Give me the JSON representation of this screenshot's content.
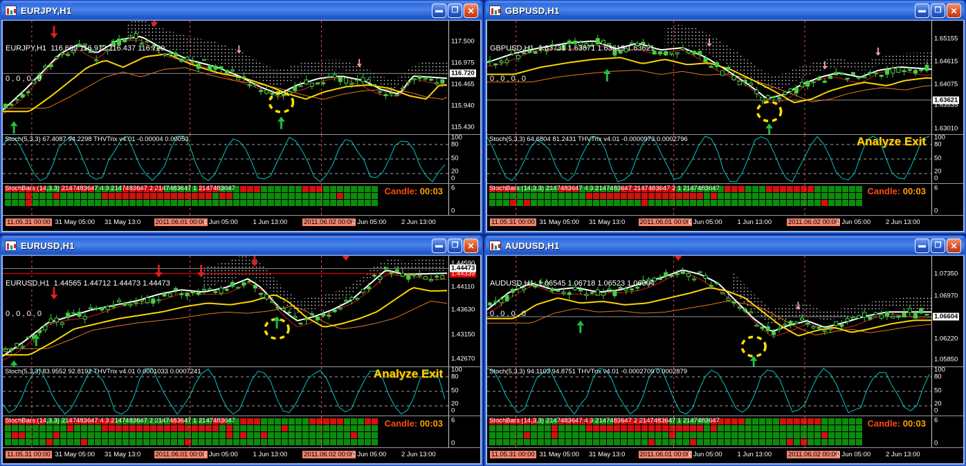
{
  "app": {
    "analyze_exit_label": "Analyze Exit",
    "candle_label": "Candle:",
    "candle_time": "00:03",
    "window_buttons": {
      "minimize": "▬",
      "maximize": "❐",
      "close": "✕"
    },
    "stoch_scale": [
      {
        "label": "100",
        "pos": 0.06
      },
      {
        "label": "80",
        "pos": 0.2
      },
      {
        "label": "50",
        "pos": 0.48
      },
      {
        "label": "20",
        "pos": 0.76
      },
      {
        "label": "0",
        "pos": 0.9
      }
    ],
    "bars_scale": [
      {
        "label": "6",
        "pos": 0.14
      },
      {
        "label": "0",
        "pos": 0.86
      }
    ]
  },
  "colors": {
    "bull": "#44d044",
    "ma_white": "#ffffff",
    "ma_yellow": "#ffd700",
    "ma_orange": "#e07820",
    "signal_red": "#d02020",
    "stoch_cyan": "#00c8c8",
    "stoch_green": "#00a040",
    "bars_green": "#0c8c0c",
    "bars_red": "#d41010",
    "day_separator": "#e05050",
    "circle_yellow": "#ffe000",
    "highlight_label": "#f4836d",
    "current_line": "#909090",
    "sell_line": "#cc0000"
  },
  "time_axis": {
    "labels": [
      {
        "text": "11.05.31 00:00",
        "highlight": true
      },
      {
        "text": "31 May 05:00",
        "highlight": false
      },
      {
        "text": "31 May 13:0",
        "highlight": false
      },
      {
        "text": "2011.06.01 00:00",
        "highlight": true
      },
      {
        "text": "1 Jun 05:00",
        "highlight": false
      },
      {
        "text": "1 Jun 13:00",
        "highlight": false
      },
      {
        "text": "2011.06.02 00:00",
        "highlight": true
      },
      {
        "text": "2 Jun 05:00",
        "highlight": false
      },
      {
        "text": "2 Jun 13:00",
        "highlight": false
      }
    ]
  },
  "windows": [
    {
      "title": "EURJPY,H1",
      "ohlc": "EURJPY,H1  116.669 116.912 116.437 116.720",
      "ohlc2": "0 , 0 , 0 , 0",
      "stoch_label": "Stoch(5,3,3) 67.4087 94.2298  THVTrix v4.01 -0.00004 0.00053",
      "stochbars_label": "StochBars (14,3,3) 2147483647 4 3 2147483647 2 2147483647 1 2147483647",
      "analyze_exit": false,
      "price_scale": [
        {
          "label": "117.500",
          "pos": 0.18,
          "type": "normal"
        },
        {
          "label": "116.975",
          "pos": 0.37,
          "type": "normal"
        },
        {
          "label": "116.720",
          "pos": 0.465,
          "type": "current"
        },
        {
          "label": "116.465",
          "pos": 0.56,
          "type": "normal"
        },
        {
          "label": "115.940",
          "pos": 0.75,
          "type": "normal"
        },
        {
          "label": "115.430",
          "pos": 0.94,
          "type": "normal"
        }
      ]
    },
    {
      "title": "GBPUSD,H1",
      "ohlc": "GBPUSD,H1  1.63731 1.63871 1.63619 1.63621",
      "ohlc2": "0 , 0 , 0 , 0",
      "stoch_label": "Stoch(5,3,3) 64.6804 81.2431  THVTrix v4.01 -0.0000973 0.0002796",
      "stochbars_label": "StochBars (14,3,3) 2147483647 4 3 2147483647 2147483647 2 1 2147483647",
      "analyze_exit": true,
      "price_scale": [
        {
          "label": "1.65155",
          "pos": 0.16,
          "type": "normal"
        },
        {
          "label": "1.64615",
          "pos": 0.36,
          "type": "normal"
        },
        {
          "label": "1.64075",
          "pos": 0.56,
          "type": "normal"
        },
        {
          "label": "1.63621",
          "pos": 0.7,
          "type": "current"
        },
        {
          "label": "1.63535",
          "pos": 0.745,
          "type": "normal"
        },
        {
          "label": "1.63010",
          "pos": 0.95,
          "type": "normal"
        }
      ]
    },
    {
      "title": "EURUSD,H1",
      "ohlc": "EURUSD,H1  1.44565 1.44712 1.44473 1.44473",
      "ohlc2": "0 , 0 , 0 , 0",
      "stoch_label": "Stoch(5,3,3) 83.9552 92.8192  THVTrix v4.01 0.0001033 0.0007241",
      "stochbars_label": "StochBars (14,3,3) 2147483647 4 3 2147483647 2 2147483647 1 2147483647",
      "analyze_exit": true,
      "price_scale": [
        {
          "label": "1.44590",
          "pos": 0.07,
          "type": "normal"
        },
        {
          "label": "1.44473",
          "pos": 0.115,
          "type": "current"
        },
        {
          "label": "1.44339",
          "pos": 0.16,
          "type": "sell"
        },
        {
          "label": "1.44110",
          "pos": 0.28,
          "type": "normal"
        },
        {
          "label": "1.43630",
          "pos": 0.49,
          "type": "normal"
        },
        {
          "label": "1.43150",
          "pos": 0.71,
          "type": "normal"
        },
        {
          "label": "1.42670",
          "pos": 0.93,
          "type": "normal"
        }
      ]
    },
    {
      "title": "AUDUSD,H1",
      "ohlc": "AUDUSD,H1  1.06545 1.06718 1.06523 1.06604",
      "ohlc2": "0 , 0 , 0 , 0",
      "stoch_label": "Stoch(5,3,3) 94.1103 94.8751  THVTrix v4.01 -0.0002709 0.0002879",
      "stochbars_label": "StochBars (14,3,3) 2147483647 4 3 2147483647 2 2147483647 1 2147483647",
      "analyze_exit": false,
      "price_scale": [
        {
          "label": "1.07350",
          "pos": 0.16,
          "type": "normal"
        },
        {
          "label": "1.06970",
          "pos": 0.36,
          "type": "normal"
        },
        {
          "label": "1.06604",
          "pos": 0.55,
          "type": "current"
        },
        {
          "label": "1.06220",
          "pos": 0.75,
          "type": "normal"
        },
        {
          "label": "1.05850",
          "pos": 0.94,
          "type": "normal"
        }
      ]
    }
  ]
}
